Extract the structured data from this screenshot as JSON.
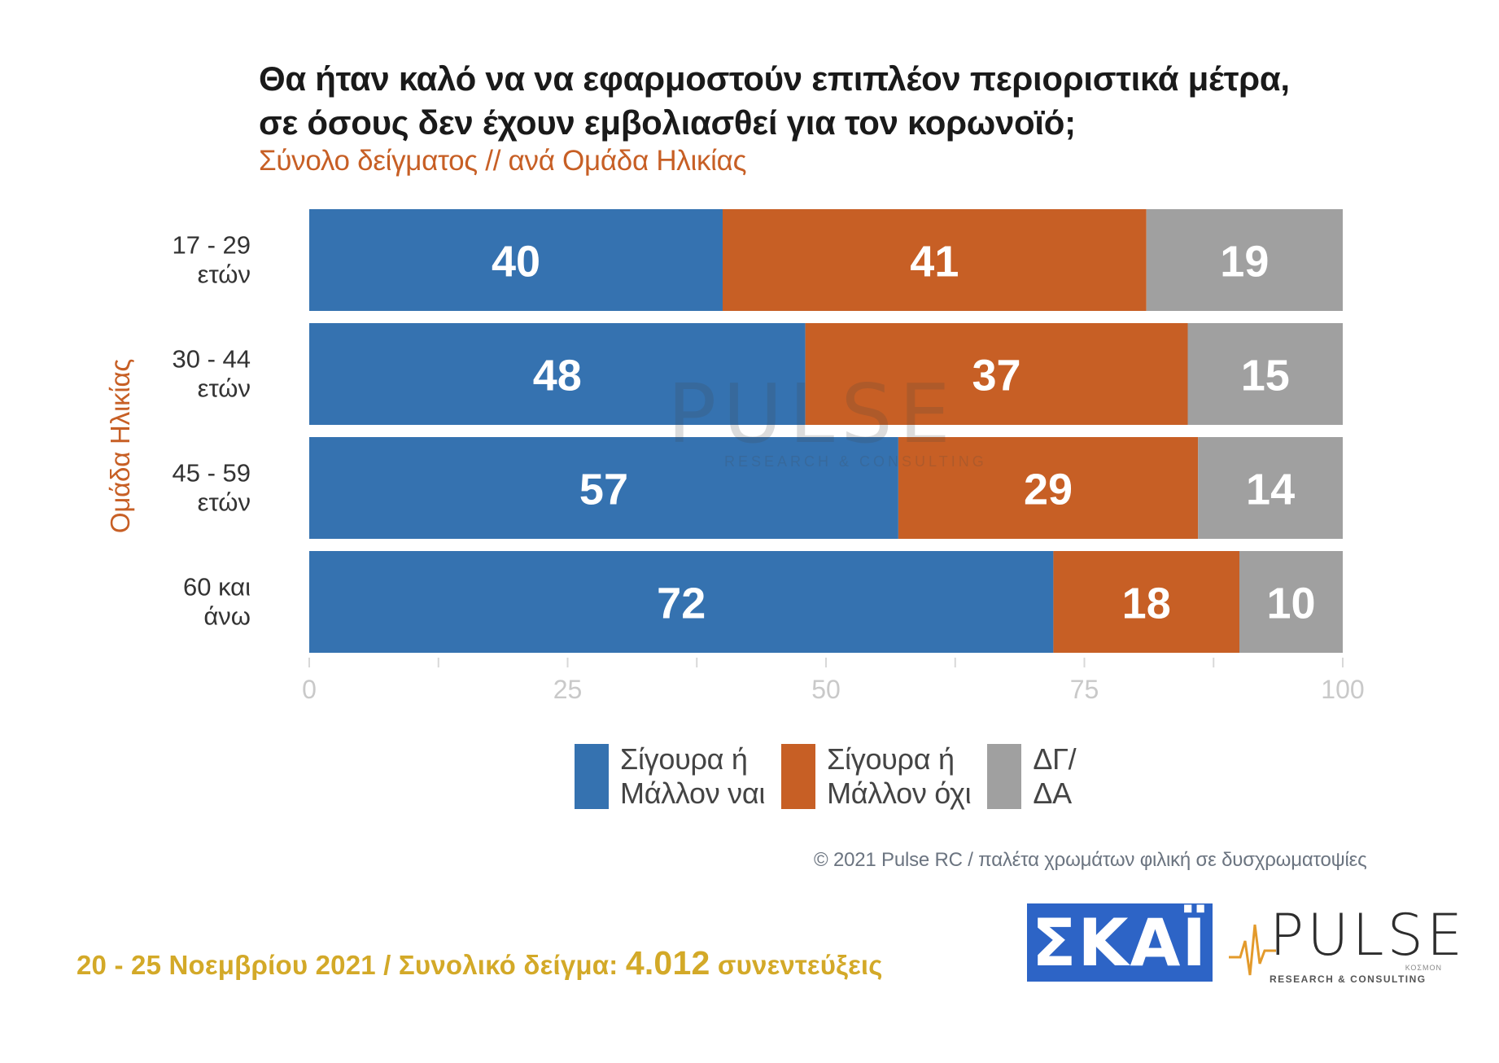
{
  "title": "Θα ήταν καλό να να εφαρμοστούν επιπλέον περιοριστικά μέτρα, σε όσους δεν έχουν εμβολιασθεί για τον κορωνοϊό;",
  "subtitle": "Σύνολο δείγματος // ανά Ομάδα Ηλικίας",
  "credit": "© 2021 Pulse RC  /  παλέτα χρωμάτων φιλική σε δυσχρωματοψίες",
  "footer": {
    "dates": "20 - 25  Νοεμβρίου 2021  /  Συνολικό δείγμα:",
    "sample": "4.012",
    "interviews": "συνεντεύξεις"
  },
  "logos": {
    "skai": "ΣΚΑΪ",
    "pulse": "PULSE",
    "pulse_tagline": "RESEARCH & CONSULTING",
    "pulse_kosmon": "ΚΟΣΜΟΝ"
  },
  "colors": {
    "yes": "#3572b0",
    "no": "#c75f25",
    "dk": "#a0a0a0",
    "accent_title": "#c75f25",
    "footer": "#d3a928",
    "skai_blue": "#2d64c6"
  },
  "chart_data": {
    "type": "bar",
    "orientation": "horizontal",
    "stacked": true,
    "ylabel": "Ομάδα Ηλικίας",
    "categories": [
      "17 - 29\nετών",
      "30 - 44\nετών",
      "45 - 59\nετών",
      "60 και\nάνω"
    ],
    "series": [
      {
        "name": "Σίγουρα ή\nΜάλλον ναι",
        "values": [
          40,
          48,
          57,
          72
        ],
        "color": "#3572b0"
      },
      {
        "name": "Σίγουρα ή\nΜάλλον όχι",
        "values": [
          41,
          37,
          29,
          18
        ],
        "color": "#c75f25"
      },
      {
        "name": "ΔΓ/\nΔΑ",
        "values": [
          19,
          15,
          14,
          10
        ],
        "color": "#a0a0a0"
      }
    ],
    "xlim": [
      0,
      100
    ],
    "xticks": [
      0,
      25,
      50,
      75,
      100
    ],
    "legend_position": "bottom",
    "grid": false
  }
}
